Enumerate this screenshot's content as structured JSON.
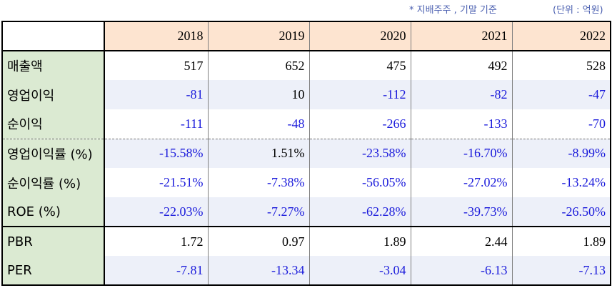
{
  "notes": {
    "left": "* 지배주주 , 기말 기준",
    "right": "(단위 : 억원)"
  },
  "colors": {
    "header_bg": "#fde4d0",
    "label_bg": "#dbead2",
    "shade_bg": "#edf0f9",
    "negative_text": "#1a1adb",
    "positive_text": "#000000"
  },
  "header": {
    "corner": "",
    "years": [
      "2018",
      "2019",
      "2020",
      "2021",
      "2022"
    ]
  },
  "rows": [
    {
      "label": "매출액",
      "values": [
        "517",
        "652",
        "475",
        "492",
        "528"
      ]
    },
    {
      "label": "영업이익",
      "values": [
        "-81",
        "10",
        "-112",
        "-82",
        "-47"
      ]
    },
    {
      "label": "순이익",
      "values": [
        "-111",
        "-48",
        "-266",
        "-133",
        "-70"
      ]
    },
    {
      "label": "영업이익률 (%)",
      "values": [
        "-15.58%",
        "1.51%",
        "-23.58%",
        "-16.70%",
        "-8.99%"
      ]
    },
    {
      "label": "순이익률 (%)",
      "values": [
        "-21.51%",
        "-7.38%",
        "-56.05%",
        "-27.02%",
        "-13.24%"
      ]
    },
    {
      "label": "ROE (%)",
      "values": [
        "-22.03%",
        "-7.27%",
        "-62.28%",
        "-39.73%",
        "-26.50%"
      ]
    },
    {
      "label": "PBR",
      "values": [
        "1.72",
        "0.97",
        "1.89",
        "2.44",
        "1.89"
      ]
    },
    {
      "label": "PER",
      "values": [
        "-7.81",
        "-13.34",
        "-3.04",
        "-6.13",
        "-7.13"
      ]
    }
  ]
}
